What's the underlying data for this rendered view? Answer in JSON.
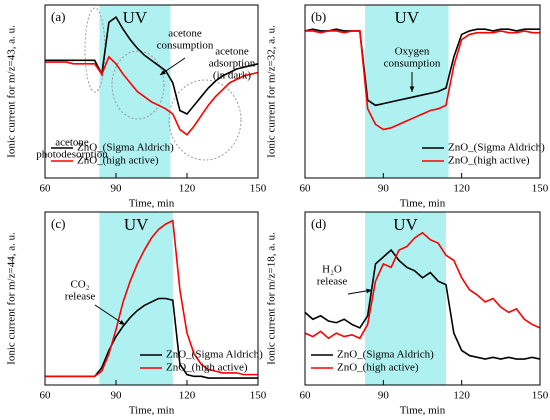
{
  "chart_data": [
    {
      "type": "line",
      "panel_label": "(a)",
      "ylabel": "Ionic current for m/z=43, a. u.",
      "xlabel": "Time, min",
      "xlim": [
        60,
        150
      ],
      "xticks": [
        60,
        90,
        120,
        150
      ],
      "ylim": [
        0,
        1
      ],
      "shaded_region": {
        "label": "UV",
        "x": [
          83,
          113
        ],
        "color": "#aff0f0"
      },
      "legend": "lower left",
      "annotations": [
        [
          "acetone",
          "photodesorption"
        ],
        [
          "acetone",
          "consumption"
        ],
        [
          "acetone",
          "adsorption",
          "(in dark)"
        ]
      ],
      "x": [
        60,
        63,
        66,
        69,
        72,
        75,
        78,
        81,
        84,
        87,
        90,
        93,
        96,
        99,
        102,
        105,
        108,
        111,
        114,
        117,
        120,
        123,
        126,
        129,
        132,
        135,
        138,
        141,
        144,
        147,
        150
      ],
      "series": [
        {
          "name": "ZnO_(Sigma Aldrich)",
          "color": "#000000",
          "values": [
            0.68,
            0.68,
            0.68,
            0.68,
            0.68,
            0.68,
            0.68,
            0.68,
            0.6,
            0.9,
            0.93,
            0.86,
            0.8,
            0.75,
            0.71,
            0.68,
            0.65,
            0.62,
            0.55,
            0.39,
            0.37,
            0.42,
            0.47,
            0.52,
            0.56,
            0.59,
            0.61,
            0.63,
            0.64,
            0.65,
            0.66
          ]
        },
        {
          "name": "ZnO_(high active)",
          "color": "#ff0000",
          "values": [
            0.67,
            0.67,
            0.67,
            0.67,
            0.66,
            0.66,
            0.66,
            0.66,
            0.6,
            0.7,
            0.66,
            0.6,
            0.55,
            0.5,
            0.47,
            0.44,
            0.42,
            0.4,
            0.37,
            0.28,
            0.25,
            0.3,
            0.36,
            0.42,
            0.47,
            0.51,
            0.55,
            0.57,
            0.59,
            0.6,
            0.61
          ]
        }
      ]
    },
    {
      "type": "line",
      "panel_label": "(b)",
      "ylabel": "Ionic current for m/z=32, a. u.",
      "xlabel": "Time, min",
      "xlim": [
        60,
        150
      ],
      "xticks": [
        60,
        90,
        120,
        150
      ],
      "ylim": [
        0,
        1
      ],
      "shaded_region": {
        "label": "UV",
        "x": [
          83,
          115
        ],
        "color": "#aff0f0"
      },
      "legend": "lower right",
      "annotations": [
        [
          "Oxygen",
          "consumption"
        ]
      ],
      "x": [
        60,
        63,
        66,
        69,
        72,
        75,
        78,
        81,
        84,
        87,
        90,
        93,
        96,
        99,
        102,
        105,
        108,
        111,
        114,
        117,
        120,
        123,
        126,
        129,
        132,
        135,
        138,
        141,
        144,
        147,
        150
      ],
      "series": [
        {
          "name": "ZnO_(Sigma Aldrich)",
          "color": "#000000",
          "values": [
            0.85,
            0.86,
            0.85,
            0.85,
            0.86,
            0.85,
            0.85,
            0.85,
            0.45,
            0.42,
            0.43,
            0.44,
            0.45,
            0.46,
            0.47,
            0.48,
            0.49,
            0.5,
            0.52,
            0.7,
            0.83,
            0.85,
            0.86,
            0.86,
            0.85,
            0.86,
            0.86,
            0.85,
            0.86,
            0.86,
            0.86
          ]
        },
        {
          "name": "ZnO_(high active)",
          "color": "#ff0000",
          "values": [
            0.85,
            0.85,
            0.84,
            0.85,
            0.85,
            0.84,
            0.85,
            0.85,
            0.4,
            0.31,
            0.28,
            0.29,
            0.31,
            0.33,
            0.35,
            0.37,
            0.39,
            0.4,
            0.42,
            0.65,
            0.8,
            0.83,
            0.84,
            0.84,
            0.84,
            0.85,
            0.84,
            0.84,
            0.85,
            0.84,
            0.84
          ]
        }
      ]
    },
    {
      "type": "line",
      "panel_label": "(c)",
      "ylabel": "Ionic current for m/z=44, a. u.",
      "xlabel": "Time, min",
      "xlim": [
        60,
        150
      ],
      "xticks": [
        60,
        90,
        120,
        150
      ],
      "ylim": [
        0,
        1
      ],
      "shaded_region": {
        "label": "UV",
        "x": [
          83,
          114
        ],
        "color": "#aff0f0"
      },
      "legend": "lower right",
      "annotations": [
        [
          "CO₂",
          "release"
        ]
      ],
      "x": [
        60,
        63,
        66,
        69,
        72,
        75,
        78,
        81,
        84,
        87,
        90,
        93,
        96,
        99,
        102,
        105,
        108,
        111,
        114,
        117,
        120,
        123,
        126,
        129,
        132,
        135,
        138,
        141,
        144,
        147,
        150
      ],
      "series": [
        {
          "name": "ZnO_(Sigma Aldrich)",
          "color": "#000000",
          "values": [
            0.05,
            0.05,
            0.05,
            0.05,
            0.05,
            0.05,
            0.05,
            0.05,
            0.1,
            0.2,
            0.28,
            0.34,
            0.39,
            0.43,
            0.46,
            0.48,
            0.5,
            0.5,
            0.49,
            0.12,
            0.06,
            0.05,
            0.05,
            0.04,
            0.04,
            0.04,
            0.04,
            0.04,
            0.04,
            0.04,
            0.04
          ]
        },
        {
          "name": "ZnO_(high active)",
          "color": "#ff0000",
          "values": [
            0.05,
            0.05,
            0.05,
            0.05,
            0.05,
            0.05,
            0.05,
            0.05,
            0.08,
            0.18,
            0.32,
            0.48,
            0.6,
            0.7,
            0.78,
            0.85,
            0.9,
            0.93,
            0.95,
            0.55,
            0.3,
            0.18,
            0.12,
            0.09,
            0.08,
            0.07,
            0.07,
            0.07,
            0.06,
            0.06,
            0.06
          ]
        }
      ]
    },
    {
      "type": "line",
      "panel_label": "(d)",
      "ylabel": "Ionic current for m/z=18, a. u.",
      "xlabel": "Time, min",
      "xlim": [
        60,
        150
      ],
      "xticks": [
        60,
        90,
        120,
        150
      ],
      "ylim": [
        0,
        1
      ],
      "shaded_region": {
        "label": "UV",
        "x": [
          83,
          114
        ],
        "color": "#aff0f0"
      },
      "legend": "lower left",
      "annotations": [
        [
          "H₂O",
          "release"
        ]
      ],
      "x": [
        60,
        63,
        66,
        69,
        72,
        75,
        78,
        81,
        84,
        87,
        90,
        93,
        96,
        99,
        102,
        105,
        108,
        111,
        114,
        117,
        120,
        123,
        126,
        129,
        132,
        135,
        138,
        141,
        144,
        147,
        150
      ],
      "series": [
        {
          "name": "ZnO_(Sigma Aldrich)",
          "color": "#000000",
          "values": [
            0.42,
            0.38,
            0.4,
            0.37,
            0.36,
            0.38,
            0.35,
            0.33,
            0.4,
            0.7,
            0.74,
            0.78,
            0.72,
            0.68,
            0.66,
            0.62,
            0.65,
            0.6,
            0.58,
            0.3,
            0.2,
            0.17,
            0.16,
            0.15,
            0.16,
            0.15,
            0.16,
            0.15,
            0.15,
            0.16,
            0.15
          ]
        },
        {
          "name": "ZnO_(high active)",
          "color": "#ff0000",
          "values": [
            0.3,
            0.28,
            0.31,
            0.27,
            0.3,
            0.28,
            0.29,
            0.27,
            0.35,
            0.6,
            0.7,
            0.68,
            0.78,
            0.8,
            0.85,
            0.88,
            0.84,
            0.82,
            0.75,
            0.72,
            0.62,
            0.55,
            0.52,
            0.48,
            0.5,
            0.45,
            0.42,
            0.44,
            0.38,
            0.35,
            0.33
          ]
        }
      ]
    }
  ]
}
